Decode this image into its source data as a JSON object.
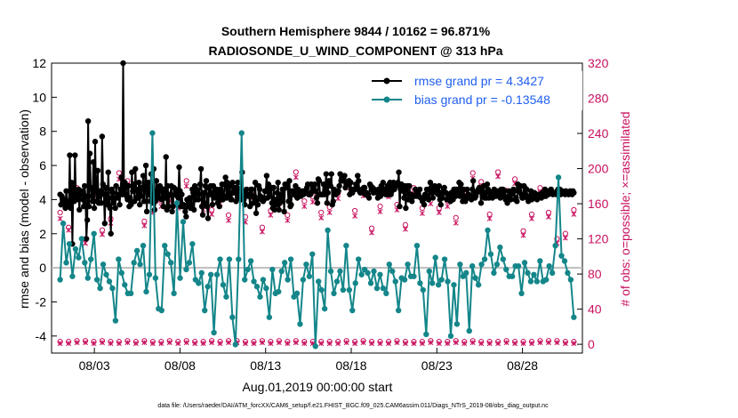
{
  "chart_data": {
    "type": "line",
    "title_line1": "Southern Hemisphere 9844 / 10162 = 96.871%",
    "title_line2": "RADIOSONDE_U_WIND_COMPONENT @ 313 hPa",
    "xlabel": "Aug.01,2019 00:00:00 start",
    "ylabel": "rmse and bias (model - observation)",
    "ylabel_right": "# of obs: o=possible; ×=assimilated",
    "footnote": "data file: /Users/raeder/DAI/ATM_forcXX/CAM6_setup/f.e21.FHIST_BGC.f09_025.CAM6assim.011/Diags_NTrS_2019-08/obs_diag_output.nc",
    "x_range_days": [
      0.5,
      31.5
    ],
    "ylim": [
      -5,
      12
    ],
    "ylim_right": [
      -10,
      320
    ],
    "x_ticks": [
      {
        "day": 3,
        "label": "08/03"
      },
      {
        "day": 8,
        "label": "08/08"
      },
      {
        "day": 13,
        "label": "08/13"
      },
      {
        "day": 18,
        "label": "08/18"
      },
      {
        "day": 23,
        "label": "08/23"
      },
      {
        "day": 28,
        "label": "08/28"
      }
    ],
    "y_ticks": [
      -4,
      -2,
      0,
      2,
      4,
      6,
      8,
      10,
      12
    ],
    "y_ticks_right": [
      0,
      40,
      80,
      120,
      160,
      200,
      240,
      280,
      320
    ],
    "series": [
      {
        "name": "rmse grand pr = 4.3427",
        "color": "#000000",
        "values": [
          4.3,
          3.7,
          4.2,
          3.8,
          3.8,
          4.0,
          3.5,
          4.5,
          3.9,
          3.8,
          3.7,
          6.6,
          3.5,
          5.0,
          1.4,
          4.7,
          3.9,
          6.6,
          4.2,
          4.0,
          4.4,
          4.6,
          3.4,
          4.5,
          4.3,
          4.5,
          4.0,
          3.6,
          4.8,
          4.2,
          1.7,
          2.8,
          8.6,
          3.6,
          6.7,
          4.7,
          4.2,
          3.9,
          6.2,
          3.5,
          7.4,
          4.5,
          3.9,
          5.7,
          3.8,
          4.3,
          4.5,
          3.8,
          7.7,
          4.9,
          4.3,
          2.6,
          4.7,
          3.8,
          3.7,
          5.6,
          4.1,
          3.5,
          2.0,
          4.6,
          4.4,
          3.8,
          4.1,
          3.5,
          4.8,
          4.1,
          4.3,
          4.3,
          3.7,
          4.6,
          5.3,
          4.3,
          12.0,
          4.4,
          5.0,
          4.7,
          4.2,
          4.0,
          4.8,
          3.6,
          4.1,
          3.7,
          5.6,
          4.5,
          4.9,
          3.9,
          5.8,
          4.6,
          4.1,
          4.1,
          5.0,
          3.7,
          4.7,
          4.2,
          4.7,
          5.4,
          3.9,
          4.7,
          6.0,
          3.3,
          4.7,
          5.0,
          4.3,
          3.9,
          5.5,
          4.1,
          3.8,
          5.8,
          3.4,
          3.9,
          5.1,
          4.3,
          4.5,
          4.1,
          4.8,
          4.7,
          4.0,
          4.5,
          3.6,
          4.6,
          4.1,
          6.5,
          3.4,
          4.8,
          3.6,
          4.3,
          4.3,
          4.8,
          3.3,
          3.6,
          4.7,
          4.3,
          4.6,
          4.5,
          4.2,
          4.1,
          5.9,
          4.5,
          3.6,
          4.3,
          3.6,
          3.7,
          3.6,
          3.3,
          3.0,
          4.0,
          3.6,
          3.8,
          4.1,
          3.5,
          3.7,
          4.6,
          4.4,
          3.4,
          4.8,
          4.0,
          4.6,
          4.4,
          4.0,
          4.3,
          4.9,
          5.8,
          3.6,
          3.1,
          4.4,
          3.8,
          4.8,
          5.1,
          3.6,
          2.9,
          4.7,
          4.3,
          4.8,
          4.3,
          3.7,
          4.8,
          4.2,
          4.1,
          4.4,
          4.6,
          3.8,
          4.4,
          3.6,
          4.6,
          4.0,
          4.9,
          4.0,
          4.2,
          4.9,
          5.3,
          4.1,
          5.0,
          4.3,
          4.2,
          4.8,
          4.0,
          4.0,
          5.0,
          4.4,
          4.5,
          4.7,
          3.9,
          4.7,
          5.0,
          4.1,
          4.3,
          4.5,
          4.0,
          5.6,
          4.5,
          4.0,
          3.7,
          4.3,
          4.6,
          4.3,
          4.2,
          4.3,
          3.6,
          4.6,
          4.6,
          4.2,
          3.8,
          4.2,
          5.0,
          3.2,
          4.0,
          3.7,
          4.8,
          4.6,
          4.2,
          4.0,
          4.1,
          3.9,
          4.0,
          4.5,
          4.5,
          5.4,
          4.1,
          4.9,
          4.2,
          4.6,
          4.7,
          3.8,
          3.5,
          4.7,
          3.4,
          4.0,
          3.7,
          4.4,
          5.0,
          3.4,
          3.8,
          4.3,
          3.9,
          4.6,
          4.6,
          3.3,
          4.9,
          4.7,
          4.9,
          4.7,
          3.9,
          5.1,
          3.6,
          3.7,
          4.5,
          4.5,
          4.3,
          4.4,
          4.8,
          4.2,
          4.1,
          4.6,
          4.3,
          4.3,
          4.2,
          4.3,
          4.5,
          4.3,
          4.5,
          4.4,
          4.5,
          4.7,
          4.9,
          4.3,
          4.3,
          4.3,
          4.9,
          4.5,
          4.5,
          4.8,
          4.9,
          4.5,
          4.1,
          3.8,
          5.2,
          5.1,
          4.3,
          4.3,
          4.3,
          4.3,
          4.9,
          4.3,
          4.7,
          5.5,
          3.8,
          4.4,
          5.1,
          4.9,
          4.8,
          5.5,
          3.7,
          3.9,
          4.6,
          4.5,
          4.3,
          4.5,
          4.4,
          4.5,
          4.8,
          5.5,
          5.1,
          5.3,
          5.1,
          5.2,
          5.4,
          4.7,
          4.9,
          4.9,
          5.0,
          5.1,
          4.3,
          5.0,
          4.4,
          4.4,
          4.6,
          4.6,
          4.6,
          4.9,
          4.8,
          5.4,
          5.1,
          4.5,
          4.4,
          4.5,
          4.6,
          4.4,
          4.7,
          4.7,
          4.3,
          4.4,
          4.3,
          4.3,
          4.1,
          4.9,
          4.8,
          4.6,
          4.7,
          4.4,
          4.6,
          4.5,
          4.5,
          4.4,
          4.1,
          4.6,
          4.2,
          4.2,
          4.8,
          4.5,
          5.0,
          4.4,
          4.6,
          4.3,
          4.3,
          4.8,
          4.3,
          4.9,
          5.0,
          4.3,
          4.5,
          4.7,
          5.0,
          4.6,
          4.8,
          4.8,
          4.9,
          5.0,
          5.6,
          3.6,
          4.6,
          4.9,
          4.7,
          4.5,
          4.1,
          4.8,
          3.5,
          4.7,
          4.8,
          4.0,
          4.8,
          4.3,
          4.3,
          3.9,
          4.2,
          4.2,
          4.2,
          4.6,
          4.5,
          4.2,
          4.5,
          4.2,
          4.6,
          4.1,
          4.1,
          3.9,
          4.0,
          3.7,
          4.3,
          4.2,
          4.6,
          4.2,
          4.0,
          4.6,
          5.0,
          4.7,
          4.4,
          4.1,
          4.6,
          4.8,
          4.6,
          4.4,
          4.5,
          4.3,
          4.8,
          4.0,
          3.7,
          4.4,
          4.1,
          4.6,
          4.7,
          4.4,
          4.4,
          4.0,
          4.3,
          4.2,
          4.2,
          3.9,
          4.4,
          4.2,
          4.0,
          4.6,
          4.6,
          4.2,
          4.6,
          4.3,
          4.3,
          5.0,
          4.2,
          4.9,
          4.4,
          3.9,
          4.6,
          4.1,
          3.9,
          4.2,
          4.6,
          4.1,
          4.3,
          4.1,
          4.1,
          4.0,
          4.6,
          5.1,
          4.2,
          4.1,
          4.2,
          4.4,
          4.5,
          4.6,
          4.7,
          4.5,
          3.8,
          4.5,
          4.3,
          4.8,
          4.1,
          4.4,
          4.1,
          4.9,
          4.6,
          4.1,
          4.4,
          4.4,
          4.4,
          4.1,
          4.5,
          4.6,
          4.4,
          4.2,
          4.3,
          4.5,
          4.4,
          4.4,
          4.1,
          4.6,
          4.3,
          4.6,
          4.2,
          4.5,
          4.0,
          4.1,
          3.8,
          4.2,
          4.5,
          4.3,
          4.0,
          4.3,
          4.4,
          4.6,
          4.5,
          4.0,
          4.1,
          3.9,
          4.9,
          4.7,
          4.5,
          4.8,
          4.3,
          4.1,
          4.1,
          4.8,
          4.7,
          4.3,
          4.6,
          4.1,
          3.9,
          4.2,
          4.2,
          4.5,
          4.0,
          4.1,
          4.1,
          4.4,
          4.2,
          4.3,
          4.0,
          4.3,
          4.3,
          4.2,
          4.3,
          4.1,
          4.4,
          4.4,
          4.2,
          4.6,
          4.2,
          4.3,
          4.5,
          4.3,
          4.4,
          4.4,
          4.6,
          4.4,
          4.3,
          4.4,
          4.4,
          4.4,
          4.3,
          4.5,
          4.6,
          4.4,
          4.6,
          4.3,
          4.4,
          4.5,
          4.4,
          4.4,
          4.3,
          4.5,
          4.4,
          4.4,
          4.3,
          4.4,
          4.5,
          4.4,
          4.3,
          4.5,
          4.4
        ]
      },
      {
        "name": "bias grand pr = -0.13548",
        "color": "#14868a",
        "values": [
          -0.7,
          2.6,
          0.3,
          1.4,
          -0.5,
          1.1,
          0.6,
          1.7,
          0.3,
          -0.6,
          0.5,
          2.0,
          -0.7,
          -1.2,
          0.2,
          -0.4,
          -0.8,
          -1.2,
          -3.1,
          0.5,
          -0.3,
          -1.0,
          -1.5,
          -1.5,
          0.3,
          1.0,
          0.2,
          1.3,
          -1.4,
          -0.4,
          7.9,
          -0.6,
          -2.4,
          -2.5,
          1.3,
          0.8,
          0.3,
          -1.5,
          3.8,
          -0.6,
          2.7,
          -0.1,
          0.3,
          1.4,
          -0.7,
          -0.9,
          -0.3,
          -2.5,
          -1.1,
          -0.4,
          -3.8,
          -0.4,
          0.5,
          -1.0,
          -1.7,
          0.5,
          -2.9,
          -4.5,
          0.5,
          7.9,
          -0.7,
          -0.1,
          0.4,
          -0.8,
          -1.1,
          -1.7,
          -0.7,
          -1.2,
          -2.9,
          -0.1,
          -1.5,
          -1.4,
          -0.2,
          0.3,
          -0.7,
          0.5,
          -1.7,
          -1.5,
          -3.3,
          -0.7,
          0.2,
          -0.5,
          0.8,
          -4.6,
          -0.8,
          -1.3,
          -2.4,
          2.2,
          -0.2,
          -1.5,
          -0.8,
          -0.2,
          -1.3,
          1.3,
          -1.3,
          -2.5,
          -0.9,
          0.5,
          -0.4,
          -0.1,
          -0.3,
          -0.9,
          -0.2,
          -1.2,
          -0.4,
          -1.2,
          -1.5,
          0.2,
          -0.2,
          -0.8,
          -2.5,
          -0.6,
          -0.7,
          0.2,
          -0.5,
          -0.5,
          1.3,
          -0.9,
          -1.3,
          -3.9,
          -0.2,
          -0.9,
          0.6,
          -1.0,
          -0.7,
          0.5,
          -0.8,
          -4.0,
          -1.0,
          -3.3,
          0.2,
          -0.5,
          -0.3,
          -3.7,
          0.1,
          -0.6,
          -1.0,
          0.2,
          0.5,
          2.2,
          0.8,
          -0.3,
          0.2,
          1.2,
          0.5,
          -0.1,
          -0.5,
          -0.5,
          0.1,
          0.1,
          -1.5,
          0.3,
          -0.3,
          -0.8,
          -0.4,
          -0.8,
          0.4,
          -0.8,
          -0.7,
          0.1,
          -0.3,
          1.3,
          5.3,
          0.7,
          0.4,
          -0.3,
          -0.7,
          -2.9
        ]
      }
    ],
    "legend": [
      {
        "label": "rmse grand pr = 4.3427",
        "color": "#000000"
      },
      {
        "label": "bias grand pr = -0.13548",
        "color": "#14868a"
      }
    ],
    "obs_counts": {
      "color": "#c8105e",
      "possible_low": [
        3,
        3,
        4,
        4,
        3,
        4,
        3,
        3,
        4,
        3,
        4,
        3,
        3,
        4,
        3,
        4,
        3,
        3,
        4,
        3,
        4,
        4,
        3,
        3,
        4,
        3,
        4,
        3,
        4,
        3,
        3,
        3,
        3,
        3,
        4,
        3,
        4,
        3,
        3,
        3,
        4,
        3,
        3,
        3,
        4,
        3,
        3,
        4,
        3,
        4,
        3,
        3,
        3,
        4,
        3,
        3,
        3,
        4,
        4,
        4,
        3,
        3
      ],
      "possible_high": [
        150,
        133,
        178,
        120,
        170,
        130,
        143,
        195,
        186,
        172,
        140,
        156,
        163,
        169,
        161,
        186,
        171,
        160,
        153,
        167,
        147,
        175,
        145,
        170,
        133,
        152,
        162,
        147,
        196,
        163,
        168,
        150,
        156,
        172,
        184,
        152,
        175,
        132,
        157,
        174,
        159,
        136,
        178,
        155,
        167,
        155,
        163,
        144,
        176,
        195,
        185,
        148,
        196,
        175,
        188,
        129,
        148,
        178,
        150,
        120,
        126,
        153
      ],
      "assimilated_low": [
        1,
        1,
        2,
        2,
        1,
        2,
        1,
        1,
        2,
        1,
        2,
        1,
        1,
        2,
        1,
        2,
        1,
        1,
        2,
        1,
        2,
        2,
        1,
        1,
        2,
        1,
        2,
        1,
        2,
        1,
        1,
        1,
        1,
        1,
        2,
        1,
        2,
        1,
        1,
        1,
        2,
        1,
        1,
        1,
        2,
        1,
        1,
        2,
        1,
        2,
        1,
        1,
        1,
        2,
        1,
        1,
        1,
        2,
        2,
        2,
        1,
        1
      ],
      "assimilated_high": [
        143,
        130,
        172,
        115,
        163,
        125,
        138,
        188,
        181,
        166,
        135,
        150,
        157,
        163,
        155,
        180,
        165,
        153,
        148,
        160,
        141,
        169,
        139,
        163,
        128,
        147,
        156,
        141,
        190,
        157,
        162,
        144,
        150,
        166,
        178,
        146,
        169,
        127,
        151,
        168,
        153,
        131,
        172,
        149,
        160,
        150,
        157,
        138,
        170,
        189,
        180,
        143,
        191,
        168,
        183,
        124,
        143,
        173,
        145,
        115,
        121,
        148
      ]
    }
  }
}
